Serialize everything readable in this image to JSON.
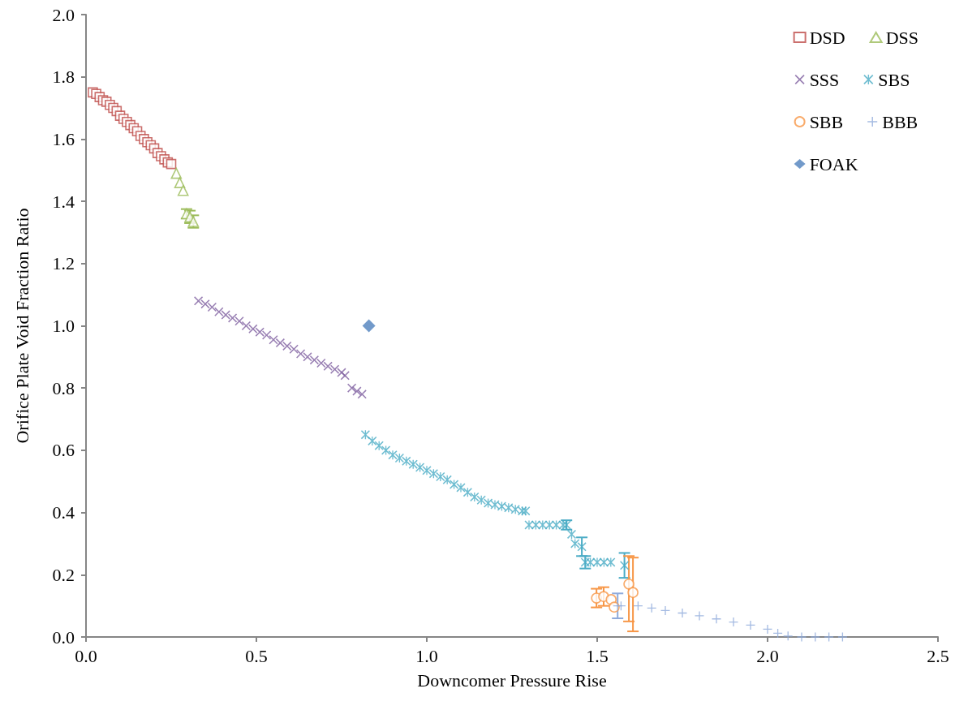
{
  "chart_data": {
    "type": "scatter",
    "xlabel": "Downcomer Pressure Rise",
    "ylabel": "Orifice Plate Void Fraction Ratio",
    "xlim": [
      0,
      2.5
    ],
    "ylim": [
      0,
      2
    ],
    "xticks": [
      {
        "value": 0,
        "label": "0.0"
      },
      {
        "value": 0.5,
        "label": "0.5"
      },
      {
        "value": 1,
        "label": "1.0"
      },
      {
        "value": 1.5,
        "label": "1.5"
      },
      {
        "value": 2,
        "label": "2.0"
      },
      {
        "value": 2.5,
        "label": "2.5"
      }
    ],
    "yticks": [
      {
        "value": 0,
        "label": "0.0"
      },
      {
        "value": 0.2,
        "label": "0.2"
      },
      {
        "value": 0.4,
        "label": "0.4"
      },
      {
        "value": 0.6,
        "label": "0.6"
      },
      {
        "value": 0.8,
        "label": "0.8"
      },
      {
        "value": 1,
        "label": "1.0"
      },
      {
        "value": 1.2,
        "label": "1.2"
      },
      {
        "value": 1.4,
        "label": "1.4"
      },
      {
        "value": 1.6,
        "label": "1.6"
      },
      {
        "value": 1.8,
        "label": "1.8"
      },
      {
        "value": 2,
        "label": "2.0"
      }
    ],
    "grid": false,
    "legend": "top right",
    "series": [
      {
        "name": "DSD",
        "color": "#be4b48",
        "marker": "square",
        "x": [
          0.02,
          0.03,
          0.04,
          0.05,
          0.06,
          0.07,
          0.08,
          0.09,
          0.1,
          0.11,
          0.12,
          0.13,
          0.14,
          0.15,
          0.16,
          0.17,
          0.18,
          0.19,
          0.2,
          0.21,
          0.22,
          0.23,
          0.24,
          0.25
        ],
        "values": [
          1.75,
          1.745,
          1.735,
          1.725,
          1.72,
          1.71,
          1.7,
          1.69,
          1.675,
          1.665,
          1.655,
          1.645,
          1.635,
          1.625,
          1.61,
          1.6,
          1.59,
          1.58,
          1.57,
          1.555,
          1.545,
          1.535,
          1.525,
          1.52
        ]
      },
      {
        "name": "DSS",
        "color": "#9bbb59",
        "marker": "triangle",
        "x": [
          0.265,
          0.275,
          0.285,
          0.295,
          0.305,
          0.315
        ],
        "values": [
          1.49,
          1.46,
          1.435,
          1.36,
          1.35,
          1.335
        ],
        "errors": [
          null,
          null,
          null,
          0.015,
          0.02,
          0.02
        ]
      },
      {
        "name": "SSS",
        "color": "#7f60a0",
        "marker": "cross",
        "x": [
          0.33,
          0.35,
          0.37,
          0.39,
          0.41,
          0.43,
          0.45,
          0.47,
          0.49,
          0.51,
          0.53,
          0.55,
          0.57,
          0.59,
          0.61,
          0.63,
          0.65,
          0.67,
          0.69,
          0.71,
          0.73,
          0.75,
          0.76,
          0.78,
          0.795,
          0.81
        ],
        "values": [
          1.08,
          1.07,
          1.06,
          1.045,
          1.035,
          1.025,
          1.015,
          1.0,
          0.99,
          0.98,
          0.97,
          0.955,
          0.945,
          0.935,
          0.925,
          0.91,
          0.9,
          0.89,
          0.88,
          0.87,
          0.86,
          0.85,
          0.84,
          0.8,
          0.79,
          0.78
        ]
      },
      {
        "name": "SBS",
        "color": "#4bacc6",
        "marker": "star",
        "x": [
          0.82,
          0.84,
          0.86,
          0.88,
          0.9,
          0.92,
          0.94,
          0.96,
          0.98,
          1.0,
          1.02,
          1.04,
          1.06,
          1.08,
          1.1,
          1.12,
          1.14,
          1.16,
          1.18,
          1.2,
          1.22,
          1.24,
          1.26,
          1.28,
          1.29,
          1.3,
          1.32,
          1.34,
          1.36,
          1.38,
          1.4,
          1.41,
          1.425,
          1.435,
          1.455,
          1.465,
          1.48,
          1.5,
          1.52,
          1.54,
          1.58
        ],
        "values": [
          0.65,
          0.63,
          0.615,
          0.6,
          0.585,
          0.575,
          0.565,
          0.555,
          0.545,
          0.535,
          0.525,
          0.515,
          0.505,
          0.49,
          0.48,
          0.465,
          0.45,
          0.44,
          0.43,
          0.425,
          0.42,
          0.415,
          0.41,
          0.405,
          0.405,
          0.36,
          0.36,
          0.36,
          0.36,
          0.36,
          0.36,
          0.36,
          0.33,
          0.3,
          0.29,
          0.24,
          0.24,
          0.24,
          0.24,
          0.24,
          0.23
        ],
        "errors": [
          null,
          null,
          null,
          null,
          null,
          null,
          null,
          null,
          null,
          null,
          null,
          null,
          null,
          null,
          null,
          null,
          null,
          null,
          null,
          null,
          null,
          null,
          null,
          null,
          null,
          null,
          null,
          null,
          null,
          null,
          null,
          0.015,
          null,
          null,
          0.03,
          0.02,
          null,
          null,
          null,
          null,
          0.04
        ]
      },
      {
        "name": "SBB",
        "color": "#f79646",
        "marker": "circle",
        "x": [
          1.498,
          1.519,
          1.541,
          1.55,
          1.593,
          1.605
        ],
        "values": [
          0.125,
          0.13,
          0.12,
          0.096,
          0.17,
          0.143
        ],
        "errors": [
          0.03,
          0.03,
          null,
          null,
          [
            0.05,
            0.26
          ],
          [
            0.018,
            0.255
          ]
        ]
      },
      {
        "name": "BBB",
        "color": "#8eaadb",
        "marker": "plus",
        "x": [
          1.56,
          1.57,
          1.62,
          1.66,
          1.7,
          1.75,
          1.8,
          1.85,
          1.9,
          1.95,
          2.0,
          2.03,
          2.06,
          2.1,
          2.14,
          2.18,
          2.22
        ],
        "values": [
          0.1,
          0.1,
          0.1,
          0.093,
          0.085,
          0.077,
          0.068,
          0.058,
          0.048,
          0.038,
          0.025,
          0.012,
          0.003,
          0,
          0,
          0,
          0
        ],
        "errors": [
          0.04,
          null,
          null,
          null,
          null,
          null,
          null,
          null,
          null,
          null,
          null,
          null,
          null,
          null,
          null,
          null,
          null
        ]
      },
      {
        "name": "FOAK",
        "color": "#4f81bd",
        "marker": "diamond",
        "x": [
          0.83
        ],
        "values": [
          1.0
        ]
      }
    ]
  }
}
